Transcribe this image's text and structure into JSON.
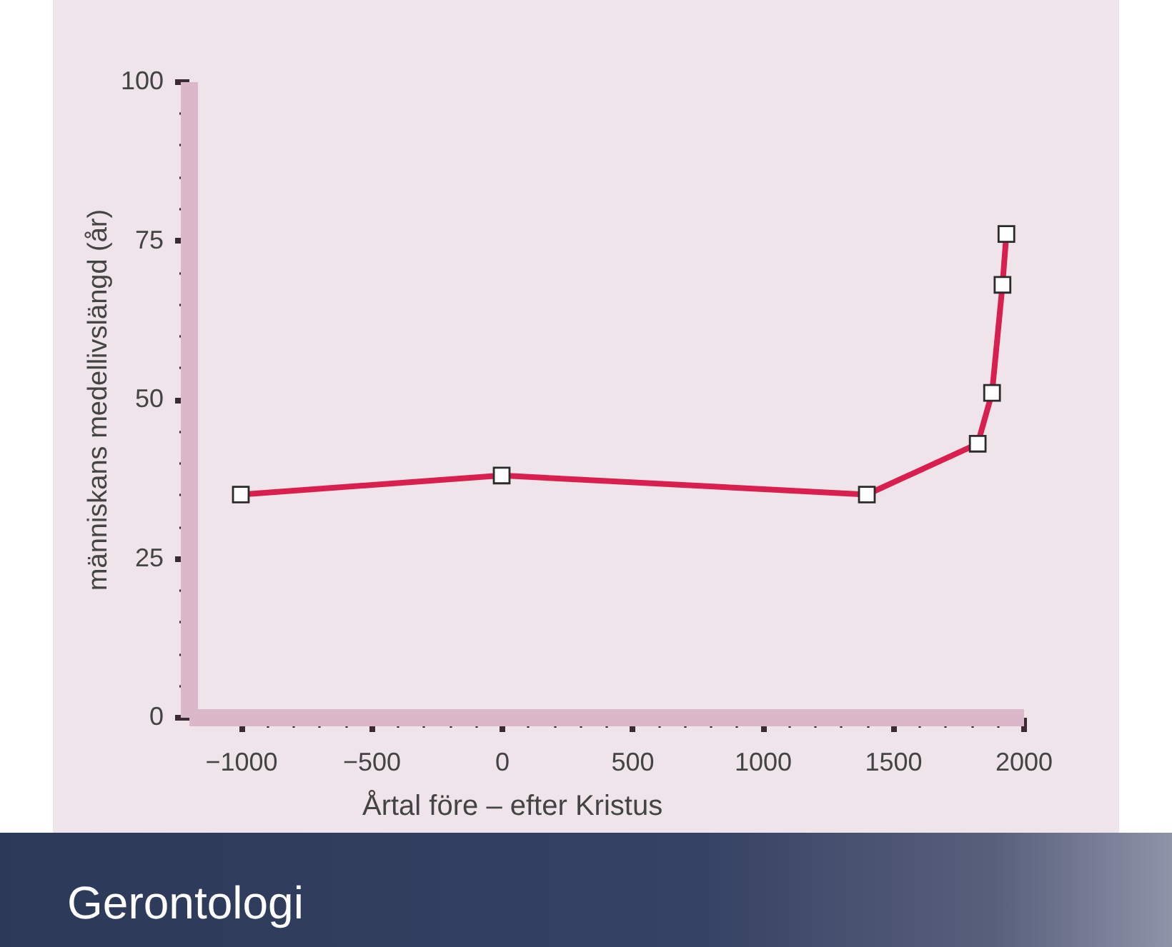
{
  "chart_data": {
    "type": "line",
    "title": "Gerontologi",
    "xlabel": "Årtal före – efter Kristus",
    "ylabel": "människans medellivslängd (år)",
    "x": [
      -1000,
      0,
      1400,
      1825,
      1880,
      1920,
      1935
    ],
    "series": [
      {
        "color": "#d81f4f",
        "values": [
          35,
          38,
          35,
          43,
          51,
          68,
          76
        ]
      }
    ],
    "xlim": [
      -1200,
      2000
    ],
    "ylim": [
      0,
      100
    ],
    "xticks": [
      -1000,
      {
        "value": -900,
        "label": null
      },
      {
        "value": -800,
        "label": null
      },
      {
        "value": -700,
        "label": null
      },
      {
        "value": -600,
        "label": null
      },
      -500,
      {
        "value": -400,
        "label": null
      },
      {
        "value": -300,
        "label": null
      },
      {
        "value": -200,
        "label": null
      },
      {
        "value": -100,
        "label": null
      },
      0,
      {
        "value": 100,
        "label": null
      },
      {
        "value": 200,
        "label": null
      },
      {
        "value": 300,
        "label": null
      },
      {
        "value": 400,
        "label": null
      },
      500,
      {
        "value": 600,
        "label": null
      },
      {
        "value": 700,
        "label": null
      },
      {
        "value": 800,
        "label": null
      },
      {
        "value": 900,
        "label": null
      },
      1000,
      {
        "value": 1100,
        "label": null
      },
      {
        "value": 1200,
        "label": null
      },
      {
        "value": 1300,
        "label": null
      },
      {
        "value": 1400,
        "label": null
      },
      1500,
      {
        "value": 1600,
        "label": null
      },
      {
        "value": 1700,
        "label": null
      },
      {
        "value": 1800,
        "label": null
      },
      {
        "value": 1900,
        "label": null
      },
      2000
    ],
    "yticks": [
      0,
      {
        "value": 5,
        "label": null
      },
      {
        "value": 10,
        "label": null
      },
      {
        "value": 15,
        "label": null
      },
      {
        "value": 20,
        "label": null
      },
      25,
      {
        "value": 30,
        "label": null
      },
      {
        "value": 35,
        "label": null
      },
      {
        "value": 40,
        "label": null
      },
      {
        "value": 45,
        "label": null
      },
      50,
      {
        "value": 55,
        "label": null
      },
      {
        "value": 60,
        "label": null
      },
      {
        "value": 65,
        "label": null
      },
      {
        "value": 70,
        "label": null
      },
      75,
      {
        "value": 80,
        "label": null
      },
      {
        "value": 85,
        "label": null
      },
      {
        "value": 90,
        "label": null
      },
      {
        "value": 95,
        "label": null
      },
      100
    ],
    "marker": "square",
    "line_style": "solid"
  }
}
